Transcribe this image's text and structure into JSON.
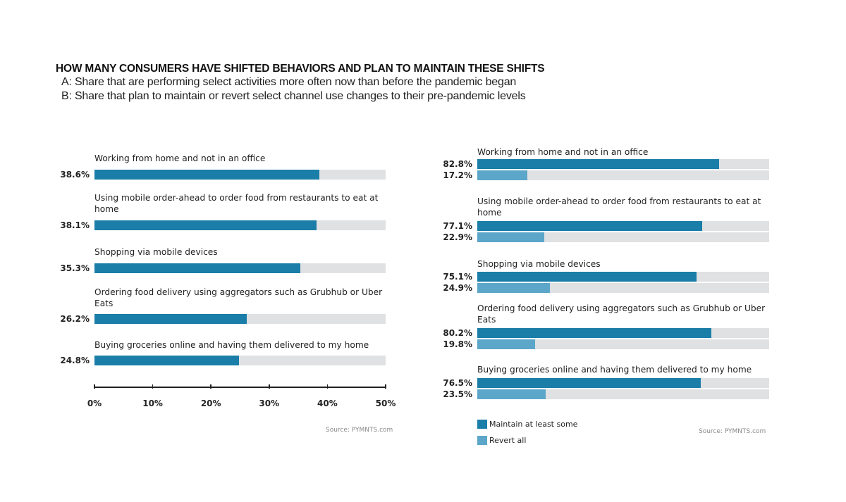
{
  "header": {
    "title": "HOW MANY CONSUMERS HAVE SHIFTED BEHAVIORS AND PLAN TO MAINTAIN THESE SHIFTS",
    "subtitle_a": "A: Share that are performing select activities more often now than before the pandemic began",
    "subtitle_b": "B: Share that plan to maintain or revert select channel use changes to their pre-pandemic levels"
  },
  "colors": {
    "maintain": "#1a7ea8",
    "revert": "#5ba6c9",
    "track": "#e0e1e3",
    "axis": "#222222"
  },
  "chart_data": [
    {
      "id": "A",
      "type": "bar",
      "orientation": "horizontal",
      "title": "",
      "categories": [
        "Working from home and not in an office",
        "Using mobile order-ahead to order food from restaurants to eat at home",
        "Shopping via mobile devices",
        "Ordering food delivery using aggregators such as Grubhub or Uber Eats",
        "Buying groceries online and having them delivered to my home"
      ],
      "values": [
        38.6,
        38.1,
        35.3,
        26.2,
        24.8
      ],
      "value_labels": [
        "38.6%",
        "38.1%",
        "35.3%",
        "26.2%",
        "24.8%"
      ],
      "xlim": [
        0,
        50
      ],
      "xticks": [
        0,
        10,
        20,
        30,
        40,
        50
      ],
      "xtick_labels": [
        "0%",
        "10%",
        "20%",
        "30%",
        "40%",
        "50%"
      ],
      "xlabel": "",
      "ylabel": "",
      "grid": false,
      "source": "Source: PYMNTS.com"
    },
    {
      "id": "B",
      "type": "bar",
      "orientation": "horizontal",
      "title": "",
      "categories": [
        "Working from home and not in an office",
        "Using mobile order-ahead to order food from restaurants to eat at home",
        "Shopping via mobile devices",
        "Ordering food delivery using aggregators such as Grubhub or Uber Eats",
        "Buying groceries online and having them delivered to my home"
      ],
      "series": [
        {
          "name": "Maintain at least some",
          "values": [
            82.8,
            77.1,
            75.1,
            80.2,
            76.5
          ],
          "value_labels": [
            "82.8%",
            "77.1%",
            "75.1%",
            "80.2%",
            "76.5%"
          ]
        },
        {
          "name": "Revert all",
          "values": [
            17.2,
            22.9,
            24.9,
            19.8,
            23.5
          ],
          "value_labels": [
            "17.2%",
            "22.9%",
            "24.9%",
            "19.8%",
            "23.5%"
          ]
        }
      ],
      "xlim": [
        0,
        100
      ],
      "legend": "bottom-left",
      "grid": false,
      "source": "Source: PYMNTS.com"
    }
  ]
}
